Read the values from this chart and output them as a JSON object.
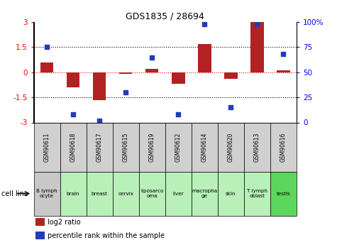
{
  "title": "GDS1835 / 28694",
  "samples": [
    "GSM90611",
    "GSM90618",
    "GSM90617",
    "GSM90615",
    "GSM90619",
    "GSM90612",
    "GSM90614",
    "GSM90620",
    "GSM90613",
    "GSM90616"
  ],
  "cell_lines": [
    "B lymph\nocyte",
    "brain",
    "breast",
    "cervix",
    "liposarco\noma",
    "liver",
    "macropha\nge",
    "skin",
    "T lymph\noblast",
    "testis"
  ],
  "log2_ratio": [
    0.6,
    -0.9,
    -1.65,
    -0.1,
    0.2,
    -0.7,
    1.7,
    -0.4,
    3.0,
    0.1
  ],
  "percentile_rank": [
    75,
    8,
    2,
    30,
    65,
    8,
    98,
    15,
    98,
    68
  ],
  "bar_color": "#B22222",
  "dot_color": "#1f3cba",
  "ylim": [
    -3,
    3
  ],
  "yticks_left": [
    -3,
    -1.5,
    0,
    1.5,
    3
  ],
  "yticks_right_vals": [
    0,
    25,
    50,
    75,
    100
  ],
  "yticks_right_labels": [
    "0",
    "25",
    "50",
    "75",
    "100%"
  ],
  "cell_line_colors": [
    "#c8c8c8",
    "#b8f0b8",
    "#b8f0b8",
    "#b8f0b8",
    "#b8f0b8",
    "#b8f0b8",
    "#b8f0b8",
    "#b8f0b8",
    "#b8f0b8",
    "#5cd65c"
  ],
  "sample_box_color": "#d0d0d0"
}
